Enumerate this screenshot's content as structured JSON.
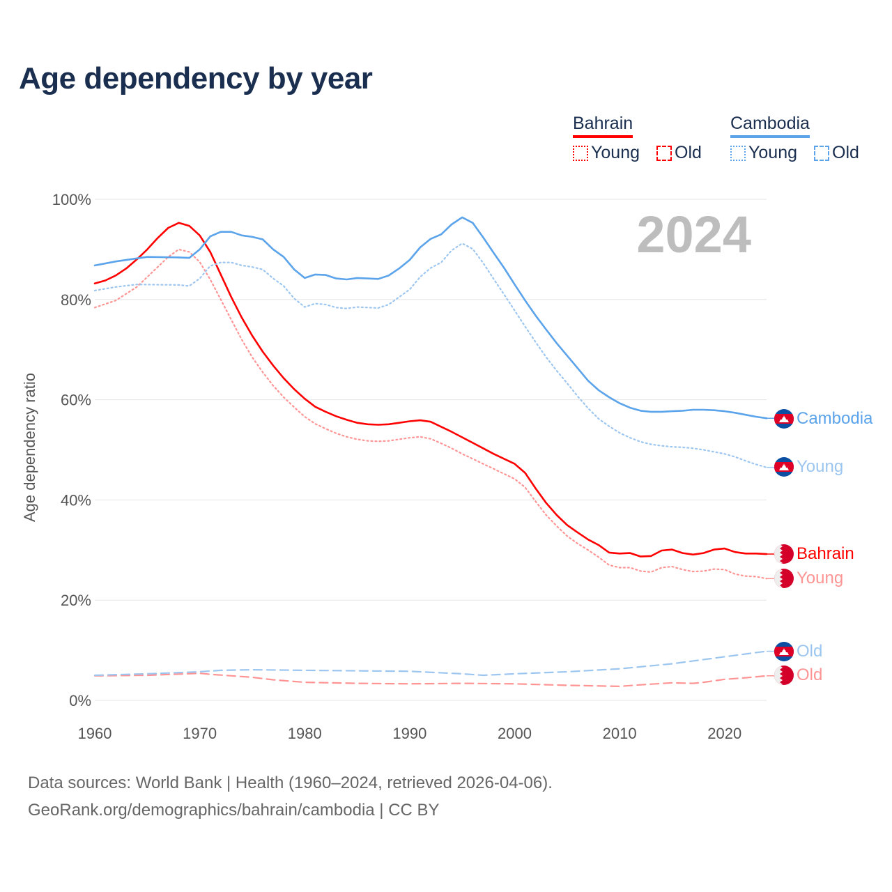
{
  "title": "Age dependency by year",
  "year_watermark": "2024",
  "legend": {
    "groups": [
      {
        "country": "Bahrain",
        "color": "#ff0000",
        "young": "Young",
        "old": "Old"
      },
      {
        "country": "Cambodia",
        "color": "#5ba3ea",
        "young": "Young",
        "old": "Old"
      }
    ]
  },
  "end_labels": {
    "cambodia_total": "Cambodia",
    "cambodia_young": "Young",
    "bahrain_total": "Bahrain",
    "bahrain_young": "Young",
    "cambodia_old": "Old",
    "bahrain_old": "Old"
  },
  "source": {
    "line1": "Data sources: World Bank | Health (1960–2024, retrieved 2026-04-06).",
    "line2": "GeoRank.org/demographics/bahrain/cambodia | CC BY"
  },
  "chart_data": {
    "type": "line",
    "title": "Age dependency by year",
    "xlabel": "",
    "ylabel": "Age dependency ratio",
    "xlim": [
      1960,
      2024
    ],
    "ylim": [
      0,
      100
    ],
    "x_ticks": [
      1960,
      1970,
      1980,
      1990,
      2000,
      2010,
      2020
    ],
    "y_ticks": [
      0,
      20,
      40,
      60,
      80,
      100
    ],
    "y_tick_labels": [
      "0%",
      "20%",
      "40%",
      "60%",
      "80%",
      "100%"
    ],
    "grid": true,
    "legend_position": "top-right",
    "series": [
      {
        "id": "bahrain_total",
        "name": "Bahrain",
        "color": "#ff0000",
        "style": "solid",
        "points": [
          [
            1960,
            83.2
          ],
          [
            1961,
            83.8
          ],
          [
            1962,
            84.8
          ],
          [
            1963,
            86.2
          ],
          [
            1964,
            88
          ],
          [
            1965,
            90
          ],
          [
            1966,
            92.3
          ],
          [
            1967,
            94.3
          ],
          [
            1968,
            95.3
          ],
          [
            1969,
            94.7
          ],
          [
            1970,
            92.8
          ],
          [
            1971,
            89.5
          ],
          [
            1972,
            85
          ],
          [
            1973,
            80.5
          ],
          [
            1974,
            76.4
          ],
          [
            1975,
            72.8
          ],
          [
            1976,
            69.6
          ],
          [
            1977,
            66.8
          ],
          [
            1978,
            64.3
          ],
          [
            1979,
            62.1
          ],
          [
            1980,
            60.2
          ],
          [
            1981,
            58.6
          ],
          [
            1982,
            57.6
          ],
          [
            1983,
            56.7
          ],
          [
            1984,
            56
          ],
          [
            1985,
            55.4
          ],
          [
            1986,
            55.1
          ],
          [
            1987,
            55
          ],
          [
            1988,
            55.1
          ],
          [
            1989,
            55.4
          ],
          [
            1990,
            55.7
          ],
          [
            1991,
            55.9
          ],
          [
            1992,
            55.6
          ],
          [
            1993,
            54.6
          ],
          [
            1994,
            53.6
          ],
          [
            1995,
            52.5
          ],
          [
            1996,
            51.4
          ],
          [
            1997,
            50.3
          ],
          [
            1998,
            49.2
          ],
          [
            1999,
            48.2
          ],
          [
            2000,
            47.2
          ],
          [
            2001,
            45.4
          ],
          [
            2002,
            42.3
          ],
          [
            2003,
            39.4
          ],
          [
            2004,
            37
          ],
          [
            2005,
            35
          ],
          [
            2006,
            33.5
          ],
          [
            2007,
            32.1
          ],
          [
            2008,
            31
          ],
          [
            2009,
            29.5
          ],
          [
            2010,
            29.3
          ],
          [
            2011,
            29.4
          ],
          [
            2012,
            28.7
          ],
          [
            2013,
            28.8
          ],
          [
            2014,
            29.9
          ],
          [
            2015,
            30.1
          ],
          [
            2016,
            29.4
          ],
          [
            2017,
            29.1
          ],
          [
            2018,
            29.4
          ],
          [
            2019,
            30.1
          ],
          [
            2020,
            30.3
          ],
          [
            2021,
            29.6
          ],
          [
            2022,
            29.3
          ],
          [
            2023,
            29.3
          ],
          [
            2024,
            29.2
          ]
        ]
      },
      {
        "id": "bahrain_young",
        "name": "Bahrain Young",
        "color": "#ff9494",
        "style": "dotted",
        "points": [
          [
            1960,
            78.4
          ],
          [
            1962,
            79.8
          ],
          [
            1964,
            82.5
          ],
          [
            1966,
            86.5
          ],
          [
            1967,
            88.5
          ],
          [
            1968,
            90
          ],
          [
            1969,
            89.5
          ],
          [
            1970,
            87.5
          ],
          [
            1971,
            84
          ],
          [
            1972,
            80
          ],
          [
            1973,
            76
          ],
          [
            1974,
            72
          ],
          [
            1975,
            68.5
          ],
          [
            1976,
            65.5
          ],
          [
            1977,
            62.8
          ],
          [
            1978,
            60.5
          ],
          [
            1979,
            58.5
          ],
          [
            1980,
            56.6
          ],
          [
            1981,
            55.2
          ],
          [
            1982,
            54.2
          ],
          [
            1983,
            53.3
          ],
          [
            1984,
            52.6
          ],
          [
            1985,
            52.1
          ],
          [
            1986,
            51.8
          ],
          [
            1987,
            51.7
          ],
          [
            1988,
            51.8
          ],
          [
            1989,
            52.1
          ],
          [
            1990,
            52.4
          ],
          [
            1991,
            52.6
          ],
          [
            1992,
            52.2
          ],
          [
            1993,
            51.3
          ],
          [
            1994,
            50.3
          ],
          [
            1995,
            49.2
          ],
          [
            1996,
            48.2
          ],
          [
            1997,
            47.2
          ],
          [
            1998,
            46.2
          ],
          [
            1999,
            45.2
          ],
          [
            2000,
            44.2
          ],
          [
            2001,
            42.5
          ],
          [
            2002,
            39.7
          ],
          [
            2003,
            37
          ],
          [
            2004,
            34.8
          ],
          [
            2005,
            32.8
          ],
          [
            2006,
            31.3
          ],
          [
            2007,
            30
          ],
          [
            2008,
            28.6
          ],
          [
            2009,
            27
          ],
          [
            2010,
            26.5
          ],
          [
            2011,
            26.5
          ],
          [
            2012,
            25.8
          ],
          [
            2013,
            25.6
          ],
          [
            2014,
            26.5
          ],
          [
            2015,
            26.7
          ],
          [
            2016,
            26.1
          ],
          [
            2017,
            25.7
          ],
          [
            2018,
            25.8
          ],
          [
            2019,
            26.2
          ],
          [
            2020,
            26.1
          ],
          [
            2021,
            25.2
          ],
          [
            2022,
            24.8
          ],
          [
            2023,
            24.7
          ],
          [
            2024,
            24.3
          ]
        ]
      },
      {
        "id": "bahrain_old",
        "name": "Bahrain Old",
        "color": "#ff9494",
        "style": "dashed",
        "points": [
          [
            1960,
            4.9
          ],
          [
            1965,
            5
          ],
          [
            1970,
            5.4
          ],
          [
            1971,
            5.2
          ],
          [
            1975,
            4.6
          ],
          [
            1977,
            4.1
          ],
          [
            1980,
            3.6
          ],
          [
            1985,
            3.4
          ],
          [
            1990,
            3.3
          ],
          [
            1995,
            3.4
          ],
          [
            2000,
            3.3
          ],
          [
            2005,
            3
          ],
          [
            2010,
            2.8
          ],
          [
            2012,
            3.1
          ],
          [
            2015,
            3.5
          ],
          [
            2017,
            3.4
          ],
          [
            2018,
            3.6
          ],
          [
            2020,
            4.2
          ],
          [
            2022,
            4.5
          ],
          [
            2024,
            4.9
          ]
        ]
      },
      {
        "id": "cambodia_total",
        "name": "Cambodia",
        "color": "#5ba3ea",
        "style": "solid",
        "points": [
          [
            1960,
            86.8
          ],
          [
            1962,
            87.6
          ],
          [
            1964,
            88.2
          ],
          [
            1965,
            88.5
          ],
          [
            1968,
            88.4
          ],
          [
            1969,
            88.3
          ],
          [
            1970,
            90
          ],
          [
            1971,
            92.6
          ],
          [
            1972,
            93.5
          ],
          [
            1973,
            93.5
          ],
          [
            1974,
            92.8
          ],
          [
            1975,
            92.5
          ],
          [
            1976,
            92
          ],
          [
            1977,
            90
          ],
          [
            1978,
            88.5
          ],
          [
            1979,
            86
          ],
          [
            1980,
            84.3
          ],
          [
            1981,
            85
          ],
          [
            1982,
            84.9
          ],
          [
            1983,
            84.2
          ],
          [
            1984,
            84
          ],
          [
            1985,
            84.3
          ],
          [
            1986,
            84.2
          ],
          [
            1987,
            84.1
          ],
          [
            1988,
            84.8
          ],
          [
            1989,
            86.2
          ],
          [
            1990,
            87.9
          ],
          [
            1991,
            90.4
          ],
          [
            1992,
            92.1
          ],
          [
            1993,
            93
          ],
          [
            1994,
            95
          ],
          [
            1995,
            96.4
          ],
          [
            1996,
            95.3
          ],
          [
            1997,
            92.4
          ],
          [
            1998,
            89.3
          ],
          [
            1999,
            86.3
          ],
          [
            2000,
            83
          ],
          [
            2001,
            79.8
          ],
          [
            2002,
            76.8
          ],
          [
            2003,
            74
          ],
          [
            2004,
            71.3
          ],
          [
            2005,
            68.8
          ],
          [
            2006,
            66.3
          ],
          [
            2007,
            63.8
          ],
          [
            2008,
            61.9
          ],
          [
            2009,
            60.5
          ],
          [
            2010,
            59.3
          ],
          [
            2011,
            58.4
          ],
          [
            2012,
            57.8
          ],
          [
            2013,
            57.6
          ],
          [
            2014,
            57.6
          ],
          [
            2015,
            57.7
          ],
          [
            2016,
            57.8
          ],
          [
            2017,
            58
          ],
          [
            2018,
            58
          ],
          [
            2019,
            57.9
          ],
          [
            2020,
            57.7
          ],
          [
            2021,
            57.4
          ],
          [
            2022,
            57
          ],
          [
            2023,
            56.6
          ],
          [
            2024,
            56.3
          ]
        ]
      },
      {
        "id": "cambodia_young",
        "name": "Cambodia Young",
        "color": "#9cc6f0",
        "style": "dotted",
        "points": [
          [
            1960,
            81.8
          ],
          [
            1962,
            82.5
          ],
          [
            1964,
            83
          ],
          [
            1968,
            82.9
          ],
          [
            1969,
            82.7
          ],
          [
            1970,
            84.2
          ],
          [
            1971,
            86.7
          ],
          [
            1972,
            87.4
          ],
          [
            1973,
            87.4
          ],
          [
            1974,
            86.8
          ],
          [
            1975,
            86.5
          ],
          [
            1976,
            86
          ],
          [
            1977,
            84.2
          ],
          [
            1978,
            82.7
          ],
          [
            1979,
            80.2
          ],
          [
            1980,
            78.5
          ],
          [
            1981,
            79.2
          ],
          [
            1982,
            79
          ],
          [
            1983,
            78.4
          ],
          [
            1984,
            78.2
          ],
          [
            1985,
            78.5
          ],
          [
            1986,
            78.4
          ],
          [
            1987,
            78.3
          ],
          [
            1988,
            79
          ],
          [
            1989,
            80.5
          ],
          [
            1990,
            82
          ],
          [
            1991,
            84.5
          ],
          [
            1992,
            86.3
          ],
          [
            1993,
            87.4
          ],
          [
            1994,
            89.8
          ],
          [
            1995,
            91.2
          ],
          [
            1996,
            90.1
          ],
          [
            1997,
            87.3
          ],
          [
            1998,
            84.1
          ],
          [
            1999,
            81
          ],
          [
            2000,
            77.8
          ],
          [
            2001,
            74.6
          ],
          [
            2002,
            71.5
          ],
          [
            2003,
            68.5
          ],
          [
            2004,
            65.8
          ],
          [
            2005,
            63.3
          ],
          [
            2006,
            60.7
          ],
          [
            2007,
            58.3
          ],
          [
            2008,
            56.2
          ],
          [
            2009,
            54.7
          ],
          [
            2010,
            53.4
          ],
          [
            2011,
            52.4
          ],
          [
            2012,
            51.6
          ],
          [
            2013,
            51.1
          ],
          [
            2014,
            50.8
          ],
          [
            2015,
            50.6
          ],
          [
            2016,
            50.5
          ],
          [
            2017,
            50.3
          ],
          [
            2018,
            50
          ],
          [
            2019,
            49.6
          ],
          [
            2020,
            49.2
          ],
          [
            2021,
            48.6
          ],
          [
            2022,
            47.8
          ],
          [
            2023,
            47.1
          ],
          [
            2024,
            46.5
          ]
        ]
      },
      {
        "id": "cambodia_old",
        "name": "Cambodia Old",
        "color": "#9cc6f0",
        "style": "dashed",
        "points": [
          [
            1960,
            5
          ],
          [
            1965,
            5.3
          ],
          [
            1970,
            5.7
          ],
          [
            1972,
            6
          ],
          [
            1975,
            6.1
          ],
          [
            1980,
            6
          ],
          [
            1985,
            5.9
          ],
          [
            1990,
            5.8
          ],
          [
            1995,
            5.3
          ],
          [
            1997,
            5
          ],
          [
            2000,
            5.3
          ],
          [
            2005,
            5.7
          ],
          [
            2010,
            6.3
          ],
          [
            2015,
            7.3
          ],
          [
            2020,
            8.7
          ],
          [
            2024,
            9.8
          ]
        ]
      }
    ]
  }
}
